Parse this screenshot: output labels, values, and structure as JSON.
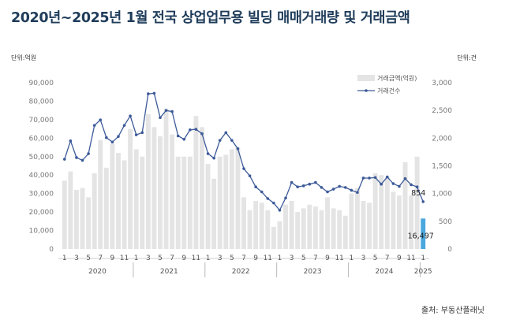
{
  "title": "2020년~2025년 1월 전국 상업업무용 빌딩 매매거래량 및 거래금액",
  "source": "출처: 부동산플래닛",
  "chart_data": {
    "type": "bar",
    "left_axis_label": "단위:억원",
    "right_axis_label": "단위:건",
    "left_ylim": [
      0,
      90000
    ],
    "left_ticks": [
      "0",
      "10,000",
      "20,000",
      "30,000",
      "40,000",
      "50,000",
      "60,000",
      "70,000",
      "80,000",
      "90,000"
    ],
    "right_ylim": [
      0,
      3000
    ],
    "right_ticks": [
      "0",
      "500",
      "1,000",
      "1,500",
      "2,000",
      "2,500",
      "3,000"
    ],
    "x_tick_labels": [
      "1",
      "3",
      "5",
      "7",
      "9",
      "11",
      "1",
      "3",
      "5",
      "7",
      "9",
      "11",
      "1",
      "3",
      "5",
      "7",
      "9",
      "11",
      "1",
      "3",
      "5",
      "7",
      "9",
      "11",
      "1",
      "3",
      "5",
      "7",
      "9",
      "11",
      "1"
    ],
    "years": [
      "2020",
      "2021",
      "2022",
      "2023",
      "2024",
      "2025"
    ],
    "series": [
      {
        "name": "거래금액(억원)",
        "kind": "bar",
        "axis": "left",
        "values": [
          37000,
          42000,
          32000,
          33000,
          28000,
          41000,
          59000,
          44000,
          57000,
          52000,
          48000,
          65000,
          54000,
          50000,
          73000,
          66000,
          61000,
          76000,
          62000,
          50000,
          50000,
          50000,
          72000,
          66000,
          46000,
          38000,
          50000,
          51000,
          54000,
          55000,
          28000,
          21000,
          26000,
          25000,
          21000,
          12000,
          15000,
          24000,
          26000,
          20000,
          22000,
          24000,
          23000,
          21000,
          28000,
          22000,
          21000,
          18000,
          30000,
          33000,
          26000,
          25000,
          41000,
          40000,
          39000,
          31000,
          29000,
          47000,
          29000,
          50000,
          16497
        ]
      },
      {
        "name": "거래건수",
        "kind": "line",
        "axis": "right",
        "values": [
          1620,
          1950,
          1650,
          1600,
          1720,
          2230,
          2330,
          2010,
          1930,
          2030,
          2230,
          2400,
          2060,
          2100,
          2800,
          2810,
          2370,
          2500,
          2480,
          2040,
          1980,
          2150,
          2160,
          2080,
          1720,
          1640,
          1960,
          2100,
          1960,
          1810,
          1450,
          1320,
          1120,
          1030,
          910,
          830,
          700,
          920,
          1200,
          1120,
          1140,
          1170,
          1200,
          1110,
          1030,
          1080,
          1130,
          1110,
          1060,
          1020,
          1280,
          1280,
          1290,
          1170,
          1300,
          1180,
          1130,
          1270,
          1160,
          1120,
          854
        ]
      }
    ],
    "data_labels": [
      "854",
      "16,497"
    ],
    "highlight_bar_color": "#4aa8df",
    "bar_color": "#e4e4e4",
    "line_color": "#3d5a99",
    "legend_position": "top-right"
  }
}
